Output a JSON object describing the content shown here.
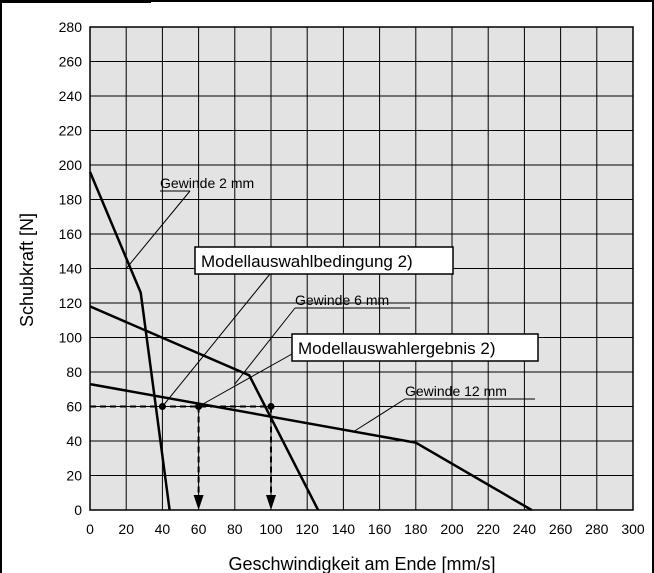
{
  "chart_data": {
    "type": "line",
    "title": "",
    "xlabel": "Geschwindigkeit am Ende [mm/s]",
    "ylabel": "Schubkraft [N]",
    "xlim": [
      0,
      300
    ],
    "ylim": [
      0,
      280
    ],
    "x_ticks": [
      0,
      20,
      40,
      60,
      80,
      100,
      120,
      140,
      160,
      180,
      200,
      220,
      240,
      260,
      280,
      300
    ],
    "y_ticks": [
      0,
      20,
      40,
      60,
      80,
      100,
      120,
      140,
      160,
      180,
      200,
      220,
      240,
      260,
      280
    ],
    "grid": true,
    "background_color": "#e3e3e3",
    "series": [
      {
        "name": "Gewinde 2 mm",
        "points": [
          [
            0,
            196
          ],
          [
            28,
            126
          ],
          [
            44,
            0
          ]
        ]
      },
      {
        "name": "Gewinde 6 mm",
        "points": [
          [
            0,
            118
          ],
          [
            88,
            78
          ],
          [
            126,
            0
          ]
        ]
      },
      {
        "name": "Gewinde 12 mm",
        "points": [
          [
            0,
            73
          ],
          [
            180,
            39
          ],
          [
            244,
            0
          ]
        ]
      }
    ],
    "markers": [
      [
        40,
        60
      ],
      [
        60,
        60
      ],
      [
        100,
        60
      ]
    ],
    "guide": {
      "y": 60,
      "x_end": 100,
      "arrows_at_x": [
        60,
        100
      ]
    },
    "annotations": [
      {
        "text": "Gewinde 2 mm",
        "framed": false,
        "target": [
          20,
          140
        ]
      },
      {
        "text": "Modellauswahlbedingung 2)",
        "framed": true,
        "target": [
          40,
          60
        ]
      },
      {
        "text": "Gewinde 6 mm",
        "framed": false,
        "target": [
          80,
          73
        ]
      },
      {
        "text": "Modellauswahlergebnis 2)",
        "framed": true,
        "target": [
          60,
          60
        ]
      },
      {
        "text": "Gewinde 12 mm",
        "framed": false,
        "target": [
          145,
          45
        ]
      }
    ]
  }
}
